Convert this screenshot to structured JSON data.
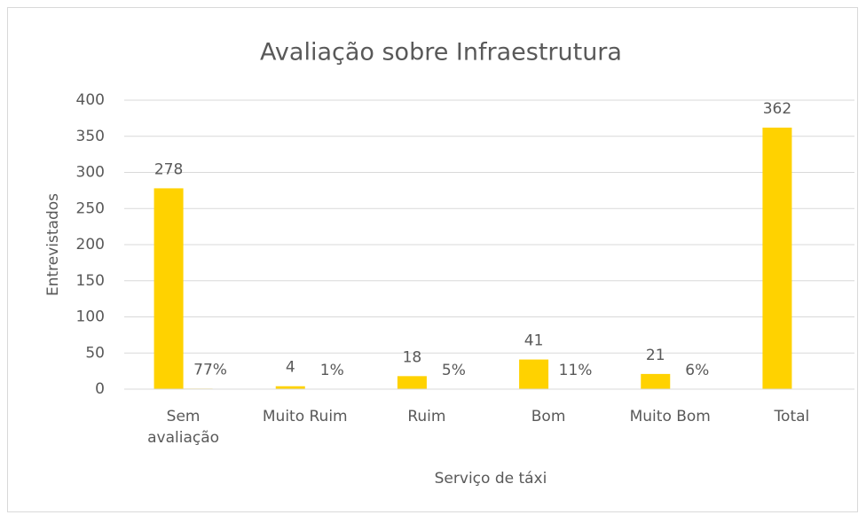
{
  "chart_data": {
    "type": "bar",
    "title": "Avaliação sobre Infraestrutura",
    "x_label": "Serviço de táxi",
    "y_label": "Entrevistados",
    "categories": [
      "Sem avaliação",
      "Muito Ruim",
      "Ruim",
      "Bom",
      "Muito Bom",
      "Total"
    ],
    "series": [
      {
        "color": "#ffd200",
        "values": [
          278,
          4,
          18,
          41,
          21,
          362
        ]
      },
      {
        "color": "#ffd200",
        "values": [
          0.77,
          0.01,
          0.05,
          0.11,
          0.06,
          null
        ],
        "value_labels": [
          "77%",
          "1%",
          "5%",
          "11%",
          "6%",
          null
        ]
      }
    ],
    "ylim": [
      0,
      400
    ],
    "yticks": [
      0,
      50,
      100,
      150,
      200,
      250,
      300,
      350,
      400
    ],
    "grid": true
  }
}
